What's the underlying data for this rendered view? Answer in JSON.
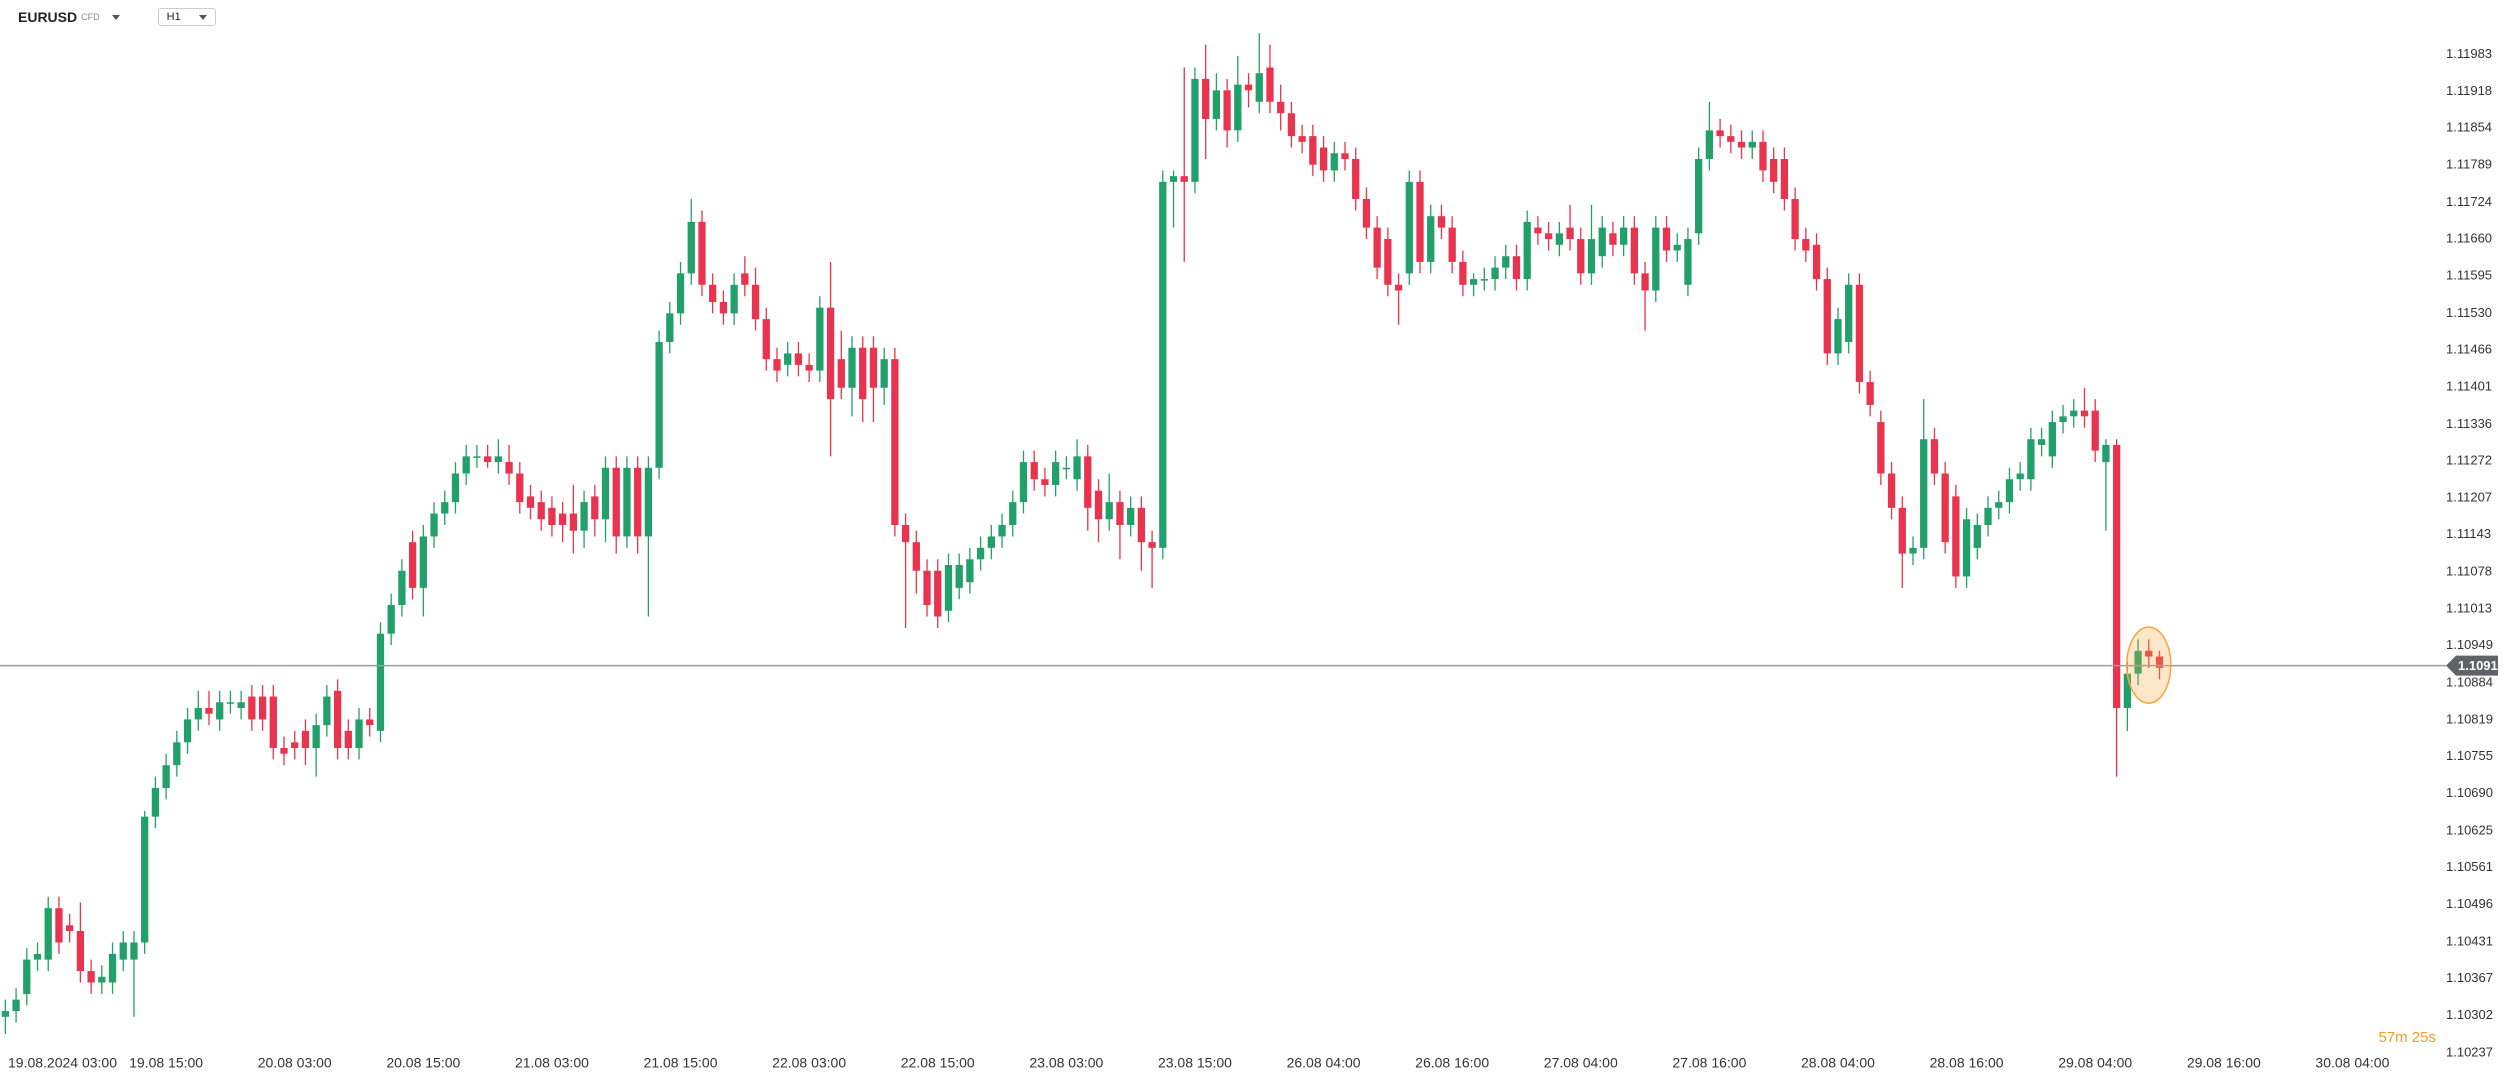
{
  "header": {
    "symbol": "EURUSD",
    "instrument_type": "CFD",
    "timeframe": "H1"
  },
  "chart_data": {
    "type": "candlestick",
    "up_color": "#22a06b",
    "down_color": "#e8344e",
    "xlim": [
      -0.5,
      226.8
    ],
    "ylim": [
      1.102,
      1.12078
    ],
    "xticks": [
      {
        "value": 3,
        "label": "19.08.2024  03:00"
      },
      {
        "value": 15,
        "label": "19.08  15:00"
      },
      {
        "value": 27,
        "label": "20.08  03:00"
      },
      {
        "value": 39,
        "label": "20.08  15:00"
      },
      {
        "value": 51,
        "label": "21.08  03:00"
      },
      {
        "value": 63,
        "label": "21.08  15:00"
      },
      {
        "value": 75,
        "label": "22.08  03:00"
      },
      {
        "value": 87,
        "label": "22.08  15:00"
      },
      {
        "value": 99,
        "label": "23.08  03:00"
      },
      {
        "value": 111,
        "label": "23.08  15:00"
      },
      {
        "value": 123,
        "label": "26.08  04:00"
      },
      {
        "value": 135,
        "label": "26.08  16:00"
      },
      {
        "value": 147,
        "label": "27.08  04:00"
      },
      {
        "value": 159,
        "label": "27.08  16:00"
      },
      {
        "value": 171,
        "label": "28.08  04:00"
      },
      {
        "value": 183,
        "label": "28.08  16:00"
      },
      {
        "value": 195,
        "label": "29.08  04:00"
      },
      {
        "value": 207,
        "label": "29.08  16:00"
      },
      {
        "value": 219,
        "label": "30.08  04:00"
      }
    ],
    "yticks": [
      1.11983,
      1.11918,
      1.11854,
      1.11789,
      1.11724,
      {
        "value": 1.1166,
        "label": "1.11660"
      },
      1.11595,
      {
        "value": 1.1153,
        "label": "1.11530"
      },
      1.11466,
      1.11401,
      1.11336,
      1.11272,
      1.11207,
      1.11143,
      1.11078,
      1.11013,
      1.10949,
      1.10884,
      1.10819,
      1.10755,
      {
        "value": 1.1069,
        "label": "1.10690"
      },
      1.10625,
      1.10561,
      1.10496,
      1.10431,
      1.10367,
      1.10302,
      1.10237
    ],
    "last_price": 1.10914,
    "countdown": "57m 25s",
    "ohlc": [
      [
        1.103,
        1.1033,
        1.1027,
        1.1031
      ],
      [
        1.1031,
        1.1035,
        1.1029,
        1.1033
      ],
      [
        1.1034,
        1.1042,
        1.1032,
        1.104
      ],
      [
        1.104,
        1.1043,
        1.1038,
        1.1041
      ],
      [
        1.104,
        1.1051,
        1.1038,
        1.1049
      ],
      [
        1.1049,
        1.1051,
        1.1041,
        1.1043
      ],
      [
        1.1046,
        1.1048,
        1.1043,
        1.1045
      ],
      [
        1.1045,
        1.105,
        1.1036,
        1.1038
      ],
      [
        1.1038,
        1.104,
        1.1034,
        1.1036
      ],
      [
        1.1036,
        1.1039,
        1.1034,
        1.1037
      ],
      [
        1.1036,
        1.1043,
        1.1034,
        1.1041
      ],
      [
        1.104,
        1.1045,
        1.1038,
        1.1043
      ],
      [
        1.104,
        1.1045,
        1.103,
        1.1043
      ],
      [
        1.1043,
        1.1066,
        1.1041,
        1.1065
      ],
      [
        1.1065,
        1.1072,
        1.1063,
        1.107
      ],
      [
        1.107,
        1.1076,
        1.1068,
        1.1074
      ],
      [
        1.1074,
        1.108,
        1.1072,
        1.1078
      ],
      [
        1.1078,
        1.1084,
        1.1076,
        1.1082
      ],
      [
        1.1082,
        1.1087,
        1.108,
        1.1084
      ],
      [
        1.1084,
        1.1087,
        1.1081,
        1.1083
      ],
      [
        1.1082,
        1.1087,
        1.108,
        1.1085
      ],
      [
        1.1085,
        1.1087,
        1.1083,
        1.1085
      ],
      [
        1.1084,
        1.1087,
        1.1082,
        1.1085
      ],
      [
        1.1086,
        1.1088,
        1.108,
        1.1082
      ],
      [
        1.1086,
        1.1088,
        1.108,
        1.1082
      ],
      [
        1.1086,
        1.1088,
        1.1075,
        1.1077
      ],
      [
        1.1077,
        1.1079,
        1.1074,
        1.1076
      ],
      [
        1.1078,
        1.108,
        1.1075,
        1.1077
      ],
      [
        1.108,
        1.1082,
        1.1074,
        1.1077
      ],
      [
        1.1077,
        1.1083,
        1.1072,
        1.1081
      ],
      [
        1.1081,
        1.1088,
        1.1079,
        1.1086
      ],
      [
        1.1087,
        1.1089,
        1.1075,
        1.1077
      ],
      [
        1.108,
        1.1082,
        1.1075,
        1.1077
      ],
      [
        1.1077,
        1.1084,
        1.1075,
        1.1082
      ],
      [
        1.1082,
        1.1084,
        1.1079,
        1.1081
      ],
      [
        1.108,
        1.1099,
        1.1078,
        1.1097
      ],
      [
        1.1097,
        1.1104,
        1.1095,
        1.1102
      ],
      [
        1.1102,
        1.111,
        1.11,
        1.1108
      ],
      [
        1.1113,
        1.1115,
        1.1103,
        1.1105
      ],
      [
        1.1105,
        1.1116,
        1.11,
        1.1114
      ],
      [
        1.1114,
        1.112,
        1.1112,
        1.1118
      ],
      [
        1.1118,
        1.1122,
        1.1116,
        1.112
      ],
      [
        1.112,
        1.1127,
        1.1118,
        1.1125
      ],
      [
        1.1125,
        1.113,
        1.1123,
        1.1128
      ],
      [
        1.1128,
        1.113,
        1.1126,
        1.1128
      ],
      [
        1.1128,
        1.113,
        1.1126,
        1.1127
      ],
      [
        1.1127,
        1.1131,
        1.1125,
        1.1128
      ],
      [
        1.1127,
        1.113,
        1.1123,
        1.1125
      ],
      [
        1.1125,
        1.1127,
        1.1118,
        1.112
      ],
      [
        1.1121,
        1.1123,
        1.1117,
        1.1119
      ],
      [
        1.112,
        1.1122,
        1.1115,
        1.1117
      ],
      [
        1.1119,
        1.1121,
        1.1114,
        1.1116
      ],
      [
        1.1118,
        1.112,
        1.1113,
        1.1116
      ],
      [
        1.1118,
        1.1123,
        1.1111,
        1.1115
      ],
      [
        1.1115,
        1.1122,
        1.1112,
        1.112
      ],
      [
        1.1121,
        1.1123,
        1.1114,
        1.1117
      ],
      [
        1.1117,
        1.1128,
        1.1113,
        1.1126
      ],
      [
        1.1126,
        1.1128,
        1.1111,
        1.1114
      ],
      [
        1.1114,
        1.1128,
        1.1112,
        1.1126
      ],
      [
        1.1126,
        1.1128,
        1.1111,
        1.1114
      ],
      [
        1.1114,
        1.1128,
        1.11,
        1.1126
      ],
      [
        1.1126,
        1.115,
        1.1124,
        1.1148
      ],
      [
        1.1148,
        1.1155,
        1.1146,
        1.1153
      ],
      [
        1.1153,
        1.1162,
        1.1151,
        1.116
      ],
      [
        1.116,
        1.1173,
        1.1158,
        1.1169
      ],
      [
        1.1169,
        1.1171,
        1.1156,
        1.1158
      ],
      [
        1.1158,
        1.116,
        1.1153,
        1.1155
      ],
      [
        1.1155,
        1.1157,
        1.1151,
        1.1153
      ],
      [
        1.1153,
        1.116,
        1.1151,
        1.1158
      ],
      [
        1.116,
        1.1163,
        1.1156,
        1.1158
      ],
      [
        1.1158,
        1.1161,
        1.115,
        1.1152
      ],
      [
        1.1152,
        1.1154,
        1.1143,
        1.1145
      ],
      [
        1.1145,
        1.1147,
        1.1141,
        1.1143
      ],
      [
        1.1144,
        1.1148,
        1.1142,
        1.1146
      ],
      [
        1.1146,
        1.1148,
        1.1142,
        1.1144
      ],
      [
        1.1144,
        1.1146,
        1.1141,
        1.1143
      ],
      [
        1.1143,
        1.1156,
        1.1141,
        1.1154
      ],
      [
        1.1154,
        1.1162,
        1.1128,
        1.1138
      ],
      [
        1.1145,
        1.115,
        1.1138,
        1.114
      ],
      [
        1.114,
        1.1149,
        1.1135,
        1.1147
      ],
      [
        1.1147,
        1.1149,
        1.1134,
        1.1138
      ],
      [
        1.1147,
        1.1149,
        1.1134,
        1.114
      ],
      [
        1.114,
        1.1147,
        1.1137,
        1.1145
      ],
      [
        1.1145,
        1.1147,
        1.1114,
        1.1116
      ],
      [
        1.1116,
        1.1118,
        1.1098,
        1.1113
      ],
      [
        1.1113,
        1.1115,
        1.1104,
        1.1108
      ],
      [
        1.1108,
        1.111,
        1.11,
        1.1102
      ],
      [
        1.1108,
        1.111,
        1.1098,
        1.11
      ],
      [
        1.1101,
        1.1111,
        1.1099,
        1.1109
      ],
      [
        1.1105,
        1.1111,
        1.1103,
        1.1109
      ],
      [
        1.1106,
        1.1112,
        1.1104,
        1.111
      ],
      [
        1.111,
        1.1114,
        1.1108,
        1.1112
      ],
      [
        1.1112,
        1.1116,
        1.111,
        1.1114
      ],
      [
        1.1114,
        1.1118,
        1.1112,
        1.1116
      ],
      [
        1.1116,
        1.1122,
        1.1114,
        1.112
      ],
      [
        1.112,
        1.1129,
        1.1118,
        1.1127
      ],
      [
        1.1127,
        1.1129,
        1.1122,
        1.1124
      ],
      [
        1.1124,
        1.1126,
        1.1121,
        1.1123
      ],
      [
        1.1123,
        1.1129,
        1.1121,
        1.1127
      ],
      [
        1.1126,
        1.1128,
        1.1124,
        1.1126
      ],
      [
        1.1124,
        1.1131,
        1.1122,
        1.1128
      ],
      [
        1.1128,
        1.113,
        1.1115,
        1.1119
      ],
      [
        1.1122,
        1.1124,
        1.1113,
        1.1117
      ],
      [
        1.1117,
        1.1125,
        1.1115,
        1.112
      ],
      [
        1.112,
        1.1122,
        1.111,
        1.1116
      ],
      [
        1.1116,
        1.1121,
        1.1114,
        1.1119
      ],
      [
        1.1119,
        1.1121,
        1.1108,
        1.1113
      ],
      [
        1.1113,
        1.1115,
        1.1105,
        1.1112
      ],
      [
        1.1112,
        1.1178,
        1.111,
        1.1176
      ],
      [
        1.1176,
        1.1178,
        1.1168,
        1.1177
      ],
      [
        1.1177,
        1.1196,
        1.1162,
        1.1176
      ],
      [
        1.1176,
        1.1196,
        1.1174,
        1.1194
      ],
      [
        1.1194,
        1.12,
        1.118,
        1.1187
      ],
      [
        1.1187,
        1.1195,
        1.1185,
        1.1192
      ],
      [
        1.1192,
        1.1194,
        1.1182,
        1.1185
      ],
      [
        1.1185,
        1.1198,
        1.1183,
        1.1193
      ],
      [
        1.1193,
        1.1195,
        1.1189,
        1.1192
      ],
      [
        1.119,
        1.1202,
        1.1188,
        1.1195
      ],
      [
        1.1196,
        1.12,
        1.1188,
        1.119
      ],
      [
        1.119,
        1.1193,
        1.1185,
        1.1188
      ],
      [
        1.1188,
        1.119,
        1.1182,
        1.1184
      ],
      [
        1.1184,
        1.1186,
        1.1181,
        1.1183
      ],
      [
        1.1184,
        1.1186,
        1.1177,
        1.1179
      ],
      [
        1.1182,
        1.1184,
        1.1176,
        1.1178
      ],
      [
        1.1178,
        1.1183,
        1.1176,
        1.1181
      ],
      [
        1.1181,
        1.1183,
        1.1178,
        1.118
      ],
      [
        1.118,
        1.1182,
        1.1171,
        1.1173
      ],
      [
        1.1173,
        1.1175,
        1.1166,
        1.1168
      ],
      [
        1.1168,
        1.117,
        1.1159,
        1.1161
      ],
      [
        1.1166,
        1.1168,
        1.1156,
        1.1158
      ],
      [
        1.1158,
        1.116,
        1.1151,
        1.1157
      ],
      [
        1.116,
        1.1178,
        1.1158,
        1.1176
      ],
      [
        1.1176,
        1.1178,
        1.116,
        1.1162
      ],
      [
        1.1162,
        1.1172,
        1.116,
        1.117
      ],
      [
        1.117,
        1.1172,
        1.1166,
        1.1168
      ],
      [
        1.1168,
        1.117,
        1.116,
        1.1162
      ],
      [
        1.1162,
        1.1164,
        1.1156,
        1.1158
      ],
      [
        1.1158,
        1.116,
        1.1156,
        1.1159
      ],
      [
        1.1159,
        1.1161,
        1.1157,
        1.1159
      ],
      [
        1.1159,
        1.1163,
        1.1157,
        1.1161
      ],
      [
        1.1161,
        1.1165,
        1.1159,
        1.1163
      ],
      [
        1.1163,
        1.1165,
        1.1157,
        1.1159
      ],
      [
        1.1159,
        1.1171,
        1.1157,
        1.1169
      ],
      [
        1.1168,
        1.117,
        1.1165,
        1.1167
      ],
      [
        1.1167,
        1.1169,
        1.1164,
        1.1166
      ],
      [
        1.1165,
        1.1169,
        1.1163,
        1.1167
      ],
      [
        1.1168,
        1.1172,
        1.1164,
        1.1166
      ],
      [
        1.1166,
        1.1168,
        1.1158,
        1.116
      ],
      [
        1.116,
        1.1172,
        1.1158,
        1.1166
      ],
      [
        1.1163,
        1.117,
        1.1161,
        1.1168
      ],
      [
        1.1167,
        1.1169,
        1.1163,
        1.1165
      ],
      [
        1.1165,
        1.117,
        1.1163,
        1.1168
      ],
      [
        1.1168,
        1.117,
        1.1158,
        1.116
      ],
      [
        1.116,
        1.1162,
        1.115,
        1.1157
      ],
      [
        1.1157,
        1.117,
        1.1155,
        1.1168
      ],
      [
        1.1168,
        1.117,
        1.1162,
        1.1164
      ],
      [
        1.1164,
        1.1167,
        1.1162,
        1.1165
      ],
      [
        1.1158,
        1.1168,
        1.1156,
        1.1166
      ],
      [
        1.1167,
        1.1182,
        1.1165,
        1.118
      ],
      [
        1.118,
        1.119,
        1.1178,
        1.1185
      ],
      [
        1.1185,
        1.1187,
        1.1182,
        1.1184
      ],
      [
        1.1184,
        1.1186,
        1.1181,
        1.1183
      ],
      [
        1.1183,
        1.1185,
        1.118,
        1.1182
      ],
      [
        1.1182,
        1.1185,
        1.118,
        1.1183
      ],
      [
        1.1183,
        1.1185,
        1.1176,
        1.1178
      ],
      [
        1.118,
        1.1182,
        1.1174,
        1.1176
      ],
      [
        1.118,
        1.1182,
        1.1171,
        1.1173
      ],
      [
        1.1173,
        1.1175,
        1.1164,
        1.1166
      ],
      [
        1.1166,
        1.1168,
        1.1162,
        1.1164
      ],
      [
        1.1165,
        1.1167,
        1.1157,
        1.1159
      ],
      [
        1.1159,
        1.1161,
        1.1144,
        1.1146
      ],
      [
        1.1146,
        1.1154,
        1.1144,
        1.1152
      ],
      [
        1.1148,
        1.116,
        1.1146,
        1.1158
      ],
      [
        1.1158,
        1.116,
        1.1139,
        1.1141
      ],
      [
        1.1141,
        1.1143,
        1.1135,
        1.1137
      ],
      [
        1.1134,
        1.1136,
        1.1123,
        1.1125
      ],
      [
        1.1125,
        1.1127,
        1.1117,
        1.1119
      ],
      [
        1.1119,
        1.1121,
        1.1105,
        1.1111
      ],
      [
        1.1111,
        1.1114,
        1.1109,
        1.1112
      ],
      [
        1.1112,
        1.1138,
        1.111,
        1.1131
      ],
      [
        1.1131,
        1.1133,
        1.1123,
        1.1125
      ],
      [
        1.1125,
        1.1127,
        1.1111,
        1.1113
      ],
      [
        1.1121,
        1.1123,
        1.1105,
        1.1107
      ],
      [
        1.1107,
        1.1119,
        1.1105,
        1.1117
      ],
      [
        1.1112,
        1.1118,
        1.111,
        1.1116
      ],
      [
        1.1116,
        1.1121,
        1.1114,
        1.1119
      ],
      [
        1.1119,
        1.1122,
        1.1117,
        1.112
      ],
      [
        1.112,
        1.1126,
        1.1118,
        1.1124
      ],
      [
        1.1124,
        1.1127,
        1.1122,
        1.1125
      ],
      [
        1.1124,
        1.1133,
        1.1122,
        1.1131
      ],
      [
        1.113,
        1.1133,
        1.1128,
        1.1131
      ],
      [
        1.1128,
        1.1136,
        1.1126,
        1.1134
      ],
      [
        1.1134,
        1.1137,
        1.1132,
        1.1135
      ],
      [
        1.1135,
        1.1138,
        1.1133,
        1.1136
      ],
      [
        1.1136,
        1.114,
        1.1133,
        1.1135
      ],
      [
        1.1136,
        1.1138,
        1.1127,
        1.1129
      ],
      [
        1.1127,
        1.1131,
        1.1115,
        1.113
      ],
      [
        1.113,
        1.1131,
        1.1072,
        1.1084
      ],
      [
        1.1084,
        1.1092,
        1.108,
        1.109
      ],
      [
        1.109,
        1.1096,
        1.1088,
        1.1094
      ],
      [
        1.1094,
        1.1096,
        1.1091,
        1.1093
      ],
      [
        1.1093,
        1.1094,
        1.1089,
        1.1091
      ]
    ]
  }
}
